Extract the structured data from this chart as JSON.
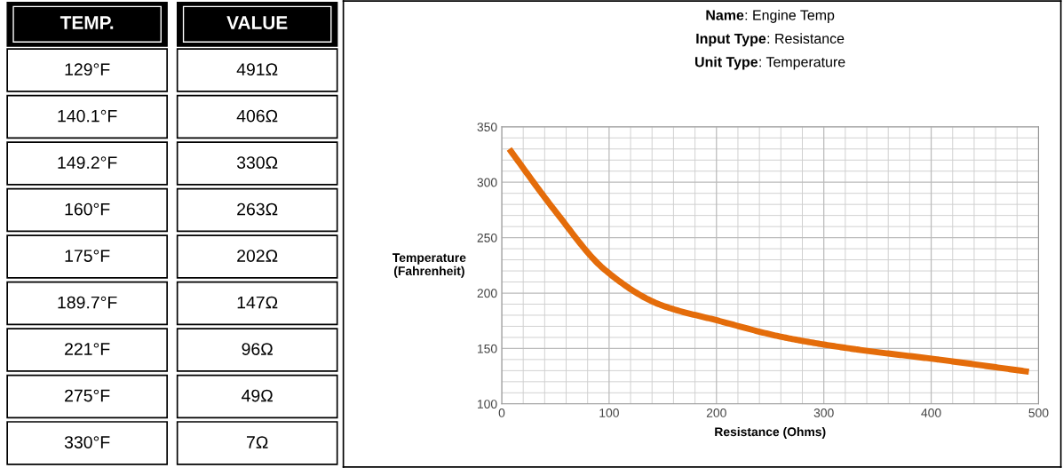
{
  "chart_data": [
    {
      "type": "other",
      "categories": [
        "TEMP.",
        "VALUE"
      ],
      "cell_labels": [
        [
          "129°F",
          "491Ω"
        ],
        [
          "140.1°F",
          "406Ω"
        ],
        [
          "149.2°F",
          "330Ω"
        ],
        [
          "160°F",
          "263Ω"
        ],
        [
          "175°F",
          "202Ω"
        ],
        [
          "189.7°F",
          "147Ω"
        ],
        [
          "221°F",
          "96Ω"
        ],
        [
          "275°F",
          "49Ω"
        ],
        [
          "330°F",
          "7Ω"
        ]
      ]
    },
    {
      "type": "line",
      "title": [
        "Name: Engine Temp",
        "Input Type: Resistance",
        "Unit Type: Temperature"
      ],
      "xlabel": "Resistance (Ohms)",
      "ylabel": "Temperature\n(Fahrenheit)",
      "series": [
        {
          "color": "#e46c0a",
          "x": [
            7,
            49,
            96,
            147,
            202,
            263,
            330,
            406,
            491
          ],
          "values": [
            330,
            275,
            221,
            189.7,
            175,
            160,
            149.2,
            140.1,
            129
          ]
        }
      ],
      "xlim": [
        0,
        500
      ],
      "xticks": [
        0,
        100,
        200,
        300,
        400,
        500
      ],
      "ylim": [
        100,
        350
      ],
      "yticks": [
        100,
        150,
        200,
        250,
        300,
        350
      ],
      "grid": true,
      "marker": "none",
      "line_style": "solid"
    }
  ]
}
